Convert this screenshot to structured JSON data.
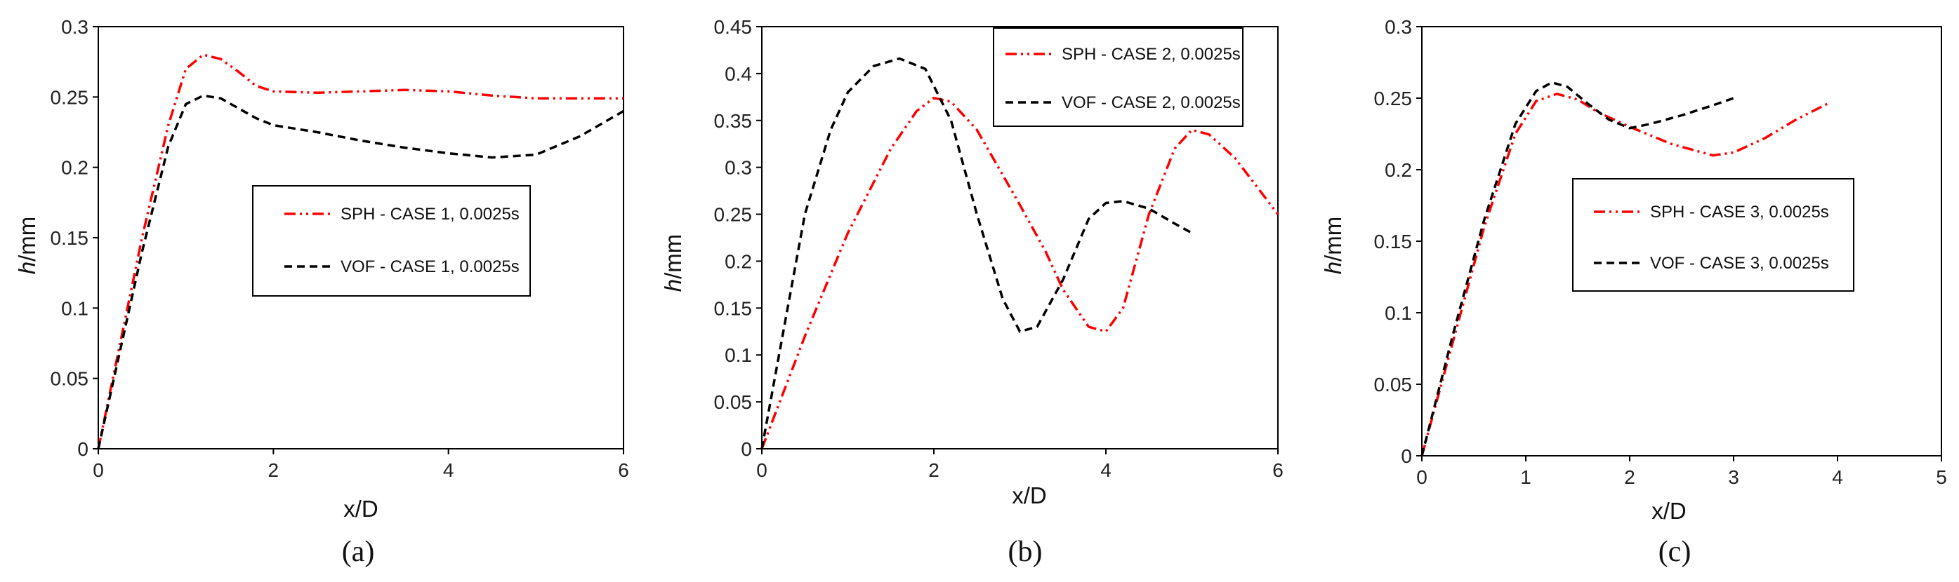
{
  "colors": {
    "sph": "#ff0000",
    "vof": "#000000",
    "axis": "#000000"
  },
  "chart_data": [
    {
      "type": "line",
      "caption": "(a)",
      "xlabel": "x/D",
      "ylabel": "h/mm",
      "ylabel_italic_part": "h",
      "ylabel_rest": "/mm",
      "xlim": [
        0,
        6
      ],
      "ylim": [
        0,
        0.3
      ],
      "xticks": [
        "0",
        "2",
        "4",
        "6"
      ],
      "yticks": [
        "0",
        "0.05",
        "0.1",
        "0.15",
        "0.2",
        "0.25",
        "0.3"
      ],
      "legend_position": "center-right",
      "series": [
        {
          "name": "SPH - CASE 1, 0.0025s",
          "style": "dash-dot-dot",
          "color": "#ff0000",
          "points": [
            [
              0,
              0
            ],
            [
              0.5,
              0.15
            ],
            [
              0.8,
              0.23
            ],
            [
              1.0,
              0.27
            ],
            [
              1.2,
              0.28
            ],
            [
              1.4,
              0.277
            ],
            [
              1.6,
              0.268
            ],
            [
              1.8,
              0.258
            ],
            [
              2.0,
              0.254
            ],
            [
              2.5,
              0.253
            ],
            [
              3.0,
              0.254
            ],
            [
              3.5,
              0.255
            ],
            [
              4.0,
              0.254
            ],
            [
              4.5,
              0.251
            ],
            [
              5.0,
              0.249
            ],
            [
              5.5,
              0.249
            ],
            [
              6.0,
              0.249
            ]
          ]
        },
        {
          "name": "VOF - CASE 1, 0.0025s",
          "style": "dashed",
          "color": "#000000",
          "points": [
            [
              0,
              0
            ],
            [
              0.5,
              0.14
            ],
            [
              0.8,
              0.215
            ],
            [
              1.0,
              0.245
            ],
            [
              1.2,
              0.251
            ],
            [
              1.4,
              0.249
            ],
            [
              1.6,
              0.242
            ],
            [
              1.8,
              0.235
            ],
            [
              2.0,
              0.23
            ],
            [
              2.5,
              0.225
            ],
            [
              3.0,
              0.219
            ],
            [
              3.5,
              0.214
            ],
            [
              4.0,
              0.21
            ],
            [
              4.5,
              0.207
            ],
            [
              5.0,
              0.209
            ],
            [
              5.5,
              0.222
            ],
            [
              6.0,
              0.24
            ]
          ]
        }
      ]
    },
    {
      "type": "line",
      "caption": "(b)",
      "xlabel": "x/D",
      "ylabel": "h/mm",
      "ylabel_italic_part": "h",
      "ylabel_rest": "/mm",
      "xlim": [
        0,
        6
      ],
      "ylim": [
        0,
        0.45
      ],
      "xticks": [
        "0",
        "2",
        "4",
        "6"
      ],
      "yticks": [
        "0",
        "0.05",
        "0.1",
        "0.15",
        "0.2",
        "0.25",
        "0.3",
        "0.35",
        "0.4",
        "0.45"
      ],
      "legend_position": "top-right",
      "series": [
        {
          "name": "SPH - CASE 2, 0.0025s",
          "style": "dash-dot-dot",
          "color": "#ff0000",
          "points": [
            [
              0,
              0
            ],
            [
              0.5,
              0.12
            ],
            [
              1.0,
              0.23
            ],
            [
              1.5,
              0.32
            ],
            [
              1.8,
              0.36
            ],
            [
              2.0,
              0.374
            ],
            [
              2.2,
              0.37
            ],
            [
              2.5,
              0.34
            ],
            [
              3.0,
              0.26
            ],
            [
              3.3,
              0.21
            ],
            [
              3.5,
              0.17
            ],
            [
              3.8,
              0.13
            ],
            [
              4.0,
              0.125
            ],
            [
              4.2,
              0.15
            ],
            [
              4.5,
              0.25
            ],
            [
              4.8,
              0.32
            ],
            [
              5.0,
              0.34
            ],
            [
              5.2,
              0.335
            ],
            [
              5.5,
              0.31
            ],
            [
              6.0,
              0.25
            ]
          ]
        },
        {
          "name": "VOF - CASE 2, 0.0025s",
          "style": "dashed",
          "color": "#000000",
          "points": [
            [
              0,
              0
            ],
            [
              0.2,
              0.1
            ],
            [
              0.5,
              0.25
            ],
            [
              0.8,
              0.34
            ],
            [
              1.0,
              0.38
            ],
            [
              1.3,
              0.408
            ],
            [
              1.6,
              0.416
            ],
            [
              1.9,
              0.405
            ],
            [
              2.2,
              0.35
            ],
            [
              2.5,
              0.25
            ],
            [
              2.8,
              0.16
            ],
            [
              3.0,
              0.125
            ],
            [
              3.2,
              0.13
            ],
            [
              3.5,
              0.18
            ],
            [
              3.8,
              0.245
            ],
            [
              4.0,
              0.262
            ],
            [
              4.2,
              0.264
            ],
            [
              4.5,
              0.256
            ],
            [
              4.8,
              0.24
            ],
            [
              5.0,
              0.23
            ]
          ]
        }
      ]
    },
    {
      "type": "line",
      "caption": "(c)",
      "xlabel": "x/D",
      "ylabel": "h/mm",
      "ylabel_italic_part": "h",
      "ylabel_rest": "/mm",
      "xlim": [
        0,
        5
      ],
      "ylim": [
        0,
        0.3
      ],
      "xticks": [
        "0",
        "1",
        "2",
        "3",
        "4",
        "5"
      ],
      "yticks": [
        "0",
        "0.05",
        "0.1",
        "0.15",
        "0.2",
        "0.25",
        "0.3"
      ],
      "legend_position": "center-right",
      "series": [
        {
          "name": "SPH - CASE 3, 0.0025s",
          "style": "dash-dot-dot",
          "color": "#ff0000",
          "points": [
            [
              0,
              0
            ],
            [
              0.3,
              0.08
            ],
            [
              0.6,
              0.16
            ],
            [
              0.9,
              0.225
            ],
            [
              1.1,
              0.248
            ],
            [
              1.3,
              0.253
            ],
            [
              1.5,
              0.249
            ],
            [
              1.7,
              0.24
            ],
            [
              2.0,
              0.23
            ],
            [
              2.4,
              0.218
            ],
            [
              2.8,
              0.21
            ],
            [
              3.0,
              0.212
            ],
            [
              3.3,
              0.222
            ],
            [
              3.6,
              0.235
            ],
            [
              3.9,
              0.246
            ]
          ]
        },
        {
          "name": "VOF - CASE 3, 0.0025s",
          "style": "dashed",
          "color": "#000000",
          "points": [
            [
              0,
              0
            ],
            [
              0.3,
              0.085
            ],
            [
              0.6,
              0.165
            ],
            [
              0.9,
              0.232
            ],
            [
              1.1,
              0.255
            ],
            [
              1.25,
              0.261
            ],
            [
              1.4,
              0.258
            ],
            [
              1.6,
              0.246
            ],
            [
              1.8,
              0.235
            ],
            [
              2.0,
              0.229
            ],
            [
              2.2,
              0.232
            ],
            [
              2.5,
              0.238
            ],
            [
              2.8,
              0.245
            ],
            [
              3.0,
              0.25
            ]
          ]
        }
      ]
    }
  ]
}
